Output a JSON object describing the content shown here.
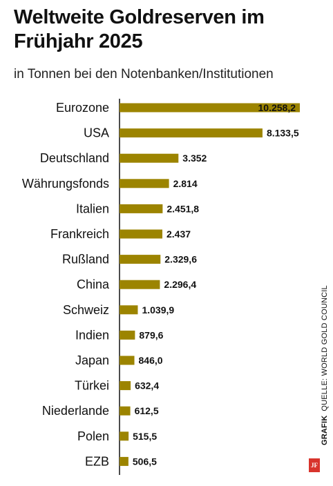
{
  "header": {
    "title": "Weltweite Goldreserven im Frühjahr 2025",
    "subtitle": "in Tonnen bei den Notenbanken/Institutionen"
  },
  "side": {
    "grafik_label": "GRAFIK",
    "source": "QUELLE: WORLD GOLD COUNCIL",
    "logo_text": "JF"
  },
  "colors": {
    "bar": "#9c8400",
    "text": "#111111",
    "logo": "#d8342c"
  },
  "chart_data": {
    "type": "bar",
    "orientation": "horizontal",
    "title": "Weltweite Goldreserven im Frühjahr 2025",
    "subtitle": "in Tonnen bei den Notenbanken/Institutionen",
    "categories": [
      "Eurozone",
      "USA",
      "Deutschland",
      "Währungsfonds",
      "Italien",
      "Frankreich",
      "Rußland",
      "China",
      "Schweiz",
      "Indien",
      "Japan",
      "Türkei",
      "Niederlande",
      "Polen",
      "EZB"
    ],
    "values": [
      10258.2,
      8133.5,
      3352,
      2814,
      2451.8,
      2437,
      2329.6,
      2296.4,
      1039.9,
      879.6,
      846.0,
      632.4,
      612.5,
      515.5,
      506.5
    ],
    "value_labels": [
      "10.258,2",
      "8.133,5",
      "3.352",
      "2.814",
      "2.451,8",
      "2.437",
      "2.329,6",
      "2.296,4",
      "1.039,9",
      "879,6",
      "846,0",
      "632,4",
      "612,5",
      "515,5",
      "506,5"
    ],
    "xlim": [
      0,
      10258.2
    ],
    "grid": false,
    "legend": "none"
  }
}
